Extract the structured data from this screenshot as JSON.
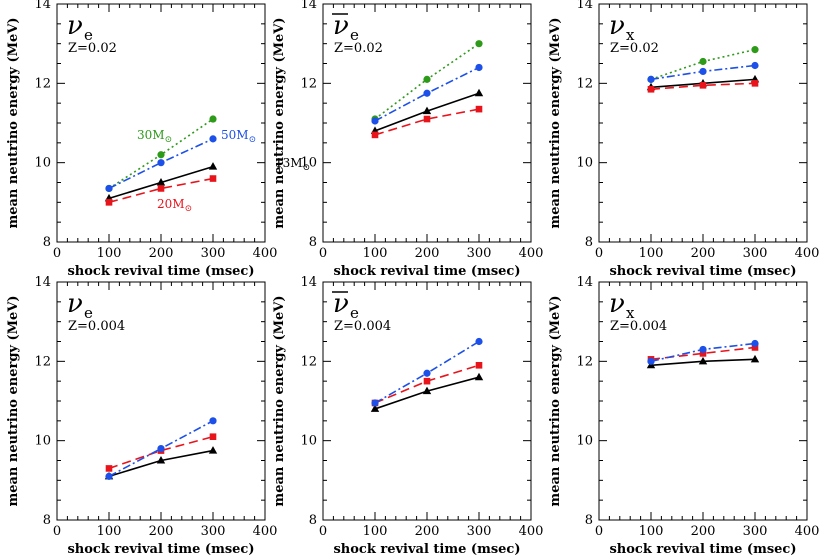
{
  "chart_data": [
    {
      "type": "line",
      "panel": "nu_e, Z=0.02",
      "species": {
        "symbol": "ν",
        "subscript": "e",
        "bar": false
      },
      "z_label": "Z=0.02",
      "xlabel": "shock revival time (msec)",
      "ylabel": "mean neutrino energy (MeV)",
      "xlim": [
        0,
        400
      ],
      "ylim": [
        8,
        14
      ],
      "xticks": [
        "0",
        "100",
        "200",
        "300",
        "400"
      ],
      "yticks": [
        "8",
        "10",
        "12",
        "14"
      ],
      "x": [
        100,
        200,
        300
      ],
      "series": [
        {
          "name": "13M",
          "label": "13M",
          "sun": "⊙",
          "color": "#000000",
          "marker": "triangle",
          "dash": "solid",
          "values": [
            9.1,
            9.5,
            9.9
          ]
        },
        {
          "name": "20M",
          "label": "20M",
          "sun": "⊙",
          "color": "#e8141c",
          "marker": "square",
          "dash": "dashed",
          "values": [
            9.0,
            9.35,
            9.6
          ]
        },
        {
          "name": "30M",
          "label": "30M",
          "sun": "⊙",
          "color": "#2e9a1a",
          "marker": "circle",
          "dash": "dotted",
          "values": [
            9.35,
            10.2,
            11.1
          ]
        },
        {
          "name": "50M",
          "label": "50M",
          "sun": "⊙",
          "color": "#1c50e8",
          "marker": "circle",
          "dash": "dashdot",
          "values": [
            9.35,
            10.0,
            10.6
          ]
        }
      ]
    },
    {
      "type": "line",
      "panel": "anti nu_e, Z=0.02",
      "species": {
        "symbol": "ν",
        "subscript": "e",
        "bar": true
      },
      "z_label": "Z=0.02",
      "xlabel": "shock revival time (msec)",
      "ylabel": "mean neutrino energy (MeV)",
      "xlim": [
        0,
        400
      ],
      "ylim": [
        8,
        14
      ],
      "xticks": [
        "0",
        "100",
        "200",
        "300",
        "400"
      ],
      "yticks": [
        "8",
        "10",
        "12",
        "14"
      ],
      "x": [
        100,
        200,
        300
      ],
      "series": [
        {
          "name": "13M",
          "color": "#000000",
          "marker": "triangle",
          "dash": "solid",
          "values": [
            10.8,
            11.3,
            11.75
          ]
        },
        {
          "name": "20M",
          "color": "#e8141c",
          "marker": "square",
          "dash": "dashed",
          "values": [
            10.7,
            11.1,
            11.35
          ]
        },
        {
          "name": "30M",
          "color": "#2e9a1a",
          "marker": "circle",
          "dash": "dotted",
          "values": [
            11.1,
            12.1,
            13.0
          ]
        },
        {
          "name": "50M",
          "color": "#1c50e8",
          "marker": "circle",
          "dash": "dashdot",
          "values": [
            11.05,
            11.75,
            12.4
          ]
        }
      ]
    },
    {
      "type": "line",
      "panel": "nu_x, Z=0.02",
      "species": {
        "symbol": "ν",
        "subscript": "x",
        "bar": false
      },
      "z_label": "Z=0.02",
      "xlabel": "shock revival time (msec)",
      "ylabel": "mean neutrino energy (MeV)",
      "xlim": [
        0,
        400
      ],
      "ylim": [
        8,
        14
      ],
      "xticks": [
        "0",
        "100",
        "200",
        "300",
        "400"
      ],
      "yticks": [
        "8",
        "10",
        "12",
        "14"
      ],
      "x": [
        100,
        200,
        300
      ],
      "series": [
        {
          "name": "13M",
          "color": "#000000",
          "marker": "triangle",
          "dash": "solid",
          "values": [
            11.9,
            12.0,
            12.1
          ]
        },
        {
          "name": "20M",
          "color": "#e8141c",
          "marker": "square",
          "dash": "dashed",
          "values": [
            11.85,
            11.95,
            12.0
          ]
        },
        {
          "name": "30M",
          "color": "#2e9a1a",
          "marker": "circle",
          "dash": "dotted",
          "values": [
            12.1,
            12.55,
            12.85
          ]
        },
        {
          "name": "50M",
          "color": "#1c50e8",
          "marker": "circle",
          "dash": "dashdot",
          "values": [
            12.1,
            12.3,
            12.45
          ]
        }
      ]
    },
    {
      "type": "line",
      "panel": "nu_e, Z=0.004",
      "species": {
        "symbol": "ν",
        "subscript": "e",
        "bar": false
      },
      "z_label": "Z=0.004",
      "xlabel": "shock revival time (msec)",
      "ylabel": "mean neutrino energy (MeV)",
      "xlim": [
        0,
        400
      ],
      "ylim": [
        8,
        14
      ],
      "xticks": [
        "0",
        "100",
        "200",
        "300",
        "400"
      ],
      "yticks": [
        "8",
        "10",
        "12",
        "14"
      ],
      "x": [
        100,
        200,
        300
      ],
      "series": [
        {
          "name": "13M",
          "color": "#000000",
          "marker": "triangle",
          "dash": "solid",
          "values": [
            9.1,
            9.5,
            9.75
          ]
        },
        {
          "name": "20M",
          "color": "#e8141c",
          "marker": "square",
          "dash": "dashed",
          "values": [
            9.3,
            9.75,
            10.1
          ]
        },
        {
          "name": "50M",
          "color": "#1c50e8",
          "marker": "circle",
          "dash": "dashdot",
          "values": [
            9.1,
            9.8,
            10.5
          ]
        }
      ]
    },
    {
      "type": "line",
      "panel": "anti nu_e, Z=0.004",
      "species": {
        "symbol": "ν",
        "subscript": "e",
        "bar": true
      },
      "z_label": "Z=0.004",
      "xlabel": "shock revival time (msec)",
      "ylabel": "mean neutrino energy (MeV)",
      "xlim": [
        0,
        400
      ],
      "ylim": [
        8,
        14
      ],
      "xticks": [
        "0",
        "100",
        "200",
        "300",
        "400"
      ],
      "yticks": [
        "8",
        "10",
        "12",
        "14"
      ],
      "x": [
        100,
        200,
        300
      ],
      "series": [
        {
          "name": "13M",
          "color": "#000000",
          "marker": "triangle",
          "dash": "solid",
          "values": [
            10.8,
            11.25,
            11.6
          ]
        },
        {
          "name": "20M",
          "color": "#e8141c",
          "marker": "square",
          "dash": "dashed",
          "values": [
            10.95,
            11.5,
            11.9
          ]
        },
        {
          "name": "50M",
          "color": "#1c50e8",
          "marker": "circle",
          "dash": "dashdot",
          "values": [
            10.95,
            11.7,
            12.5
          ]
        }
      ]
    },
    {
      "type": "line",
      "panel": "nu_x, Z=0.004",
      "species": {
        "symbol": "ν",
        "subscript": "x",
        "bar": false
      },
      "z_label": "Z=0.004",
      "xlabel": "shock revival time (msec)",
      "ylabel": "mean neutrino energy (MeV)",
      "xlim": [
        0,
        400
      ],
      "ylim": [
        8,
        14
      ],
      "xticks": [
        "0",
        "100",
        "200",
        "300",
        "400"
      ],
      "yticks": [
        "8",
        "10",
        "12",
        "14"
      ],
      "x": [
        100,
        200,
        300
      ],
      "series": [
        {
          "name": "13M",
          "color": "#000000",
          "marker": "triangle",
          "dash": "solid",
          "values": [
            11.9,
            12.0,
            12.05
          ]
        },
        {
          "name": "20M",
          "color": "#e8141c",
          "marker": "square",
          "dash": "dashed",
          "values": [
            12.05,
            12.2,
            12.35
          ]
        },
        {
          "name": "50M",
          "color": "#1c50e8",
          "marker": "circle",
          "dash": "dashdot",
          "values": [
            12.0,
            12.3,
            12.45
          ]
        }
      ]
    }
  ]
}
